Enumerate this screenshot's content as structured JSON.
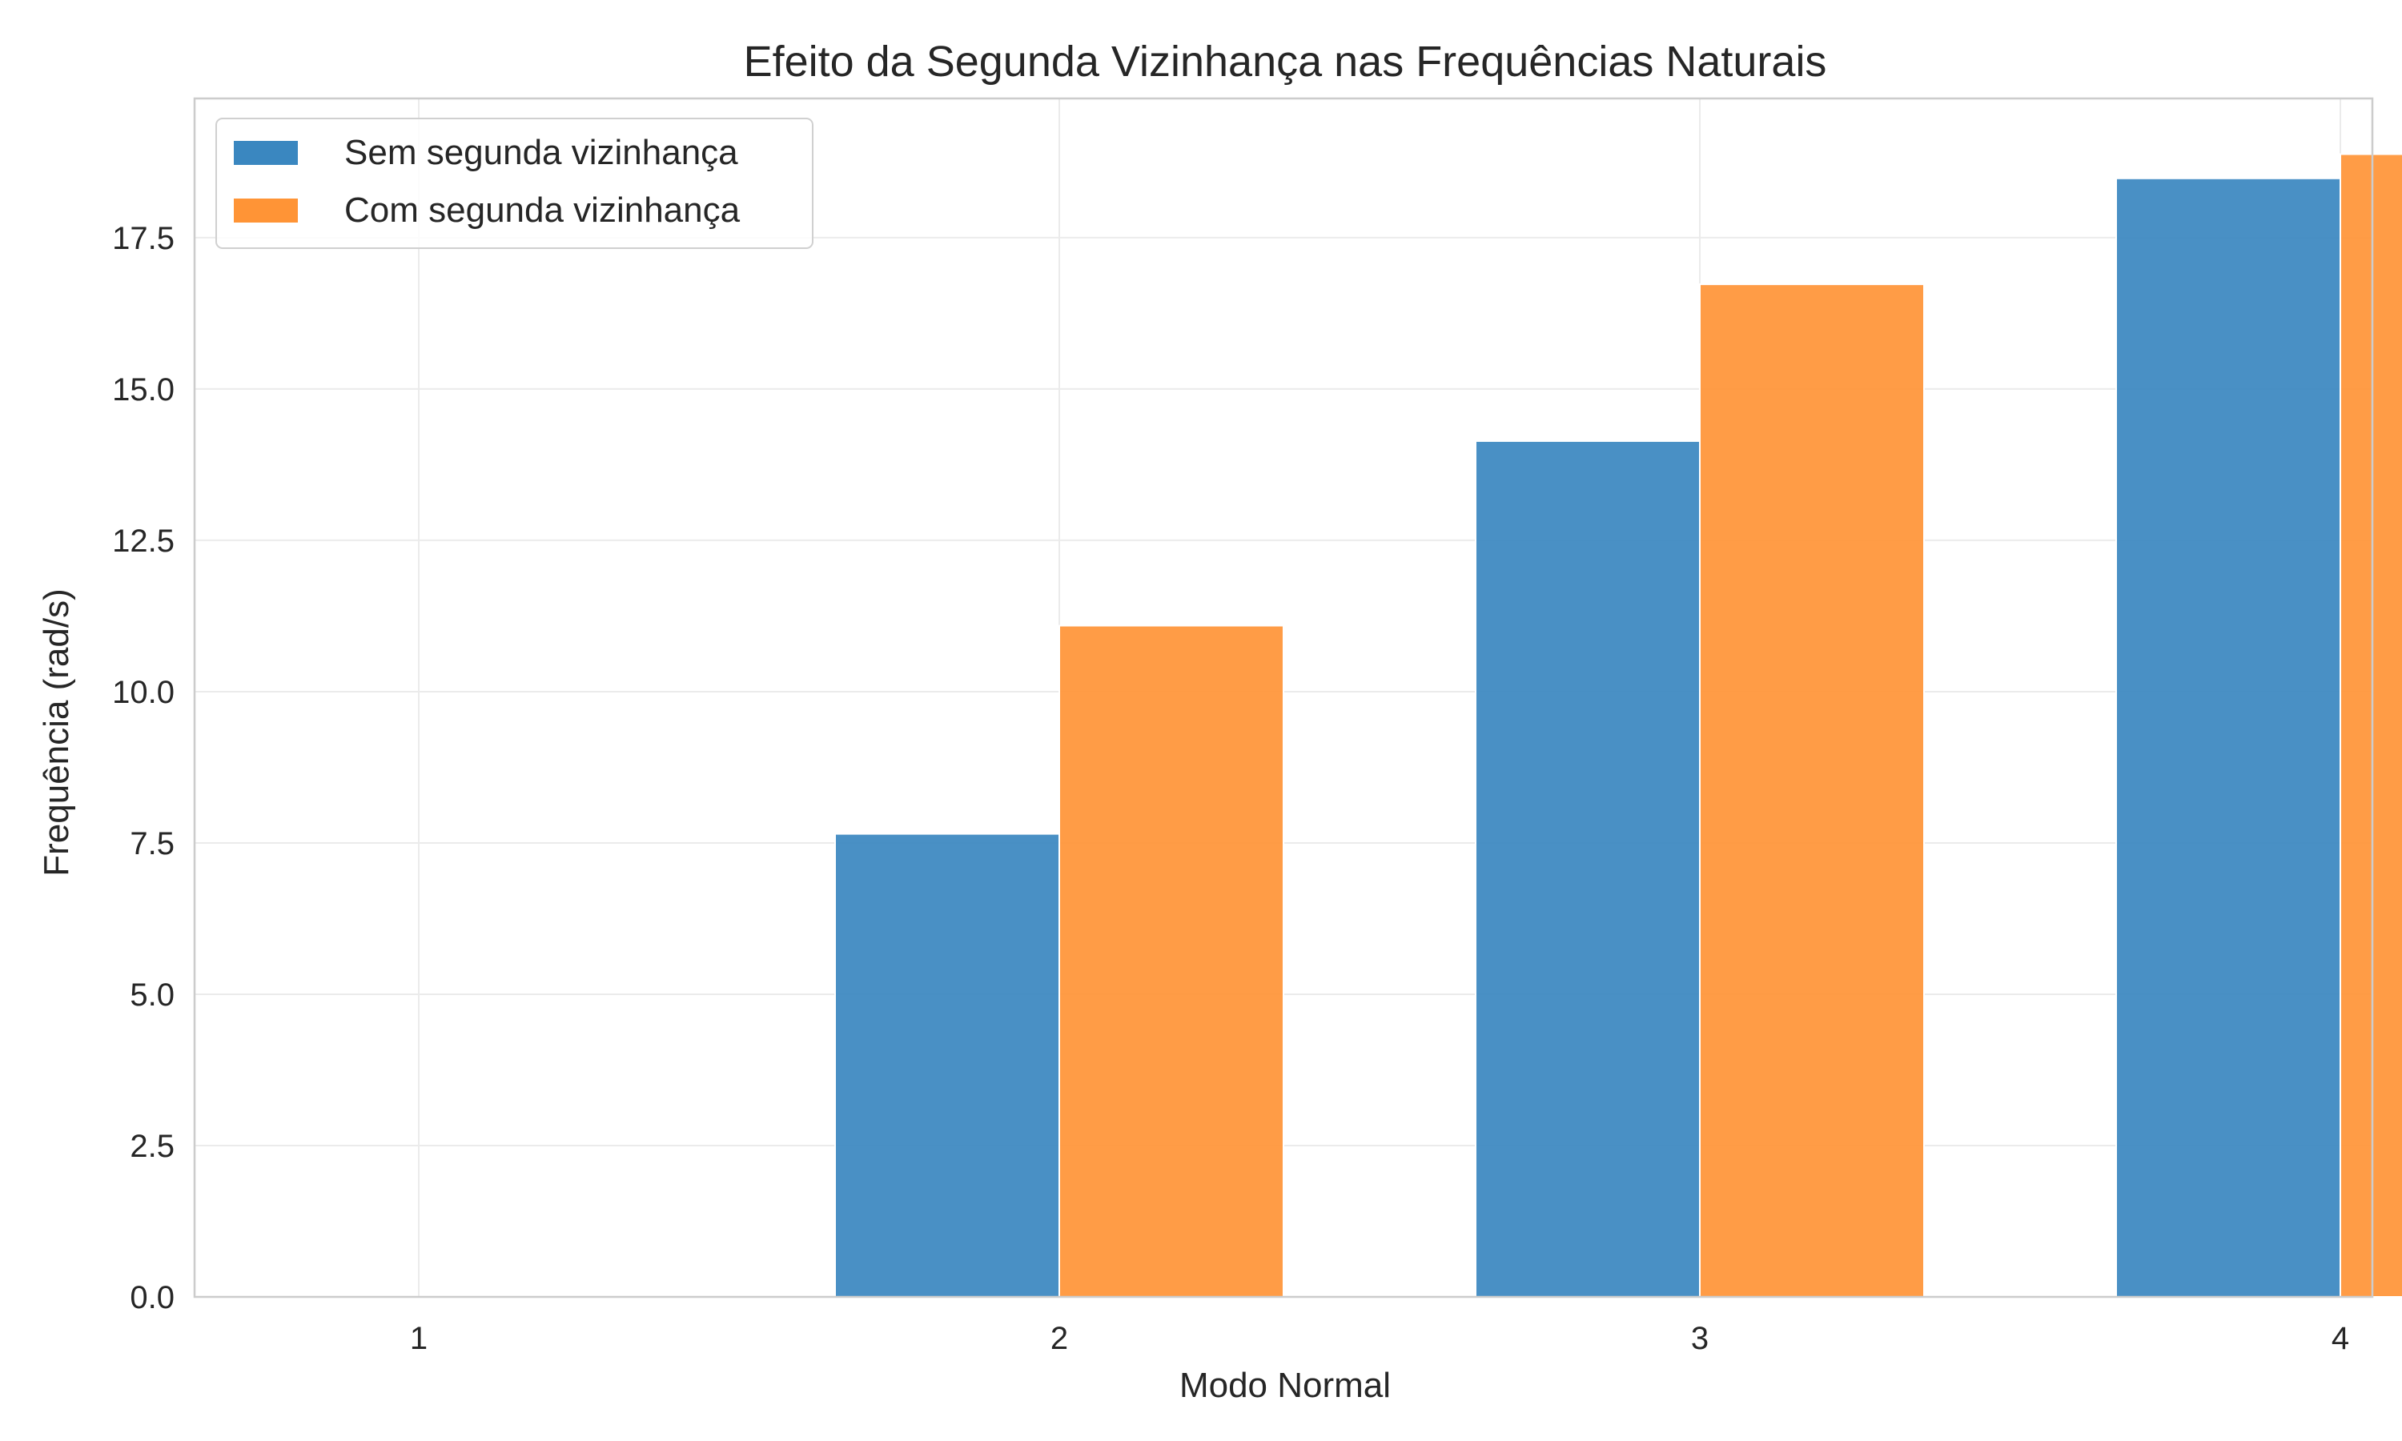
{
  "chart_data": {
    "type": "bar",
    "title": "Efeito da Segunda Vizinhança nas Frequências Naturais",
    "xlabel": "Modo Normal",
    "ylabel": "Frequência (rad/s)",
    "categories": [
      "1",
      "2",
      "3",
      "4"
    ],
    "series": [
      {
        "name": "Sem segunda vizinhança",
        "color": "#3a87c0",
        "values": [
          0.0,
          7.65,
          14.14,
          18.48
        ]
      },
      {
        "name": "Com segunda vizinhança",
        "color": "#ff9436",
        "values": [
          0.0,
          11.09,
          16.73,
          18.88
        ]
      }
    ],
    "ylim": [
      0,
      19.8
    ],
    "yticks": [
      0.0,
      2.5,
      5.0,
      7.5,
      10.0,
      12.5,
      15.0,
      17.5
    ],
    "ytick_labels": [
      "0.0",
      "2.5",
      "5.0",
      "7.5",
      "10.0",
      "12.5",
      "15.0",
      "17.5"
    ],
    "grid": true,
    "legend": "top-left"
  }
}
